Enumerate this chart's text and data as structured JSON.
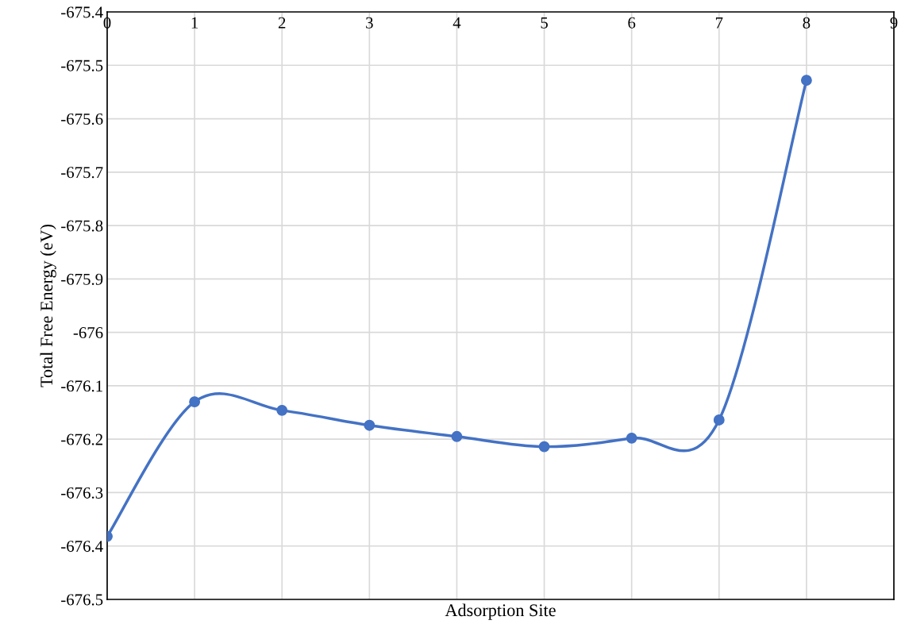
{
  "chart_data": {
    "type": "line",
    "xlabel": "Adsorption Site",
    "ylabel": "Total Free Energy (eV)",
    "x": [
      0,
      1,
      2,
      3,
      4,
      5,
      6,
      7,
      8
    ],
    "series": [
      {
        "color": "#4472c4",
        "values": [
          -676.382,
          -676.13,
          -676.146,
          -676.174,
          -676.195,
          -676.214,
          -676.198,
          -676.164,
          -675.528
        ]
      }
    ],
    "xlim": [
      0,
      9
    ],
    "xticks": [
      0,
      1,
      2,
      3,
      4,
      5,
      6,
      7,
      8,
      9
    ],
    "ylim": [
      -676.5,
      -675.4
    ],
    "yticks": [
      -676.5,
      -676.4,
      -676.3,
      -676.2,
      -676.1,
      -676,
      -675.9,
      -675.8,
      -675.7,
      -675.6,
      -675.5,
      -675.4
    ],
    "grid": true,
    "marker": "circle",
    "line_style": "solid"
  }
}
